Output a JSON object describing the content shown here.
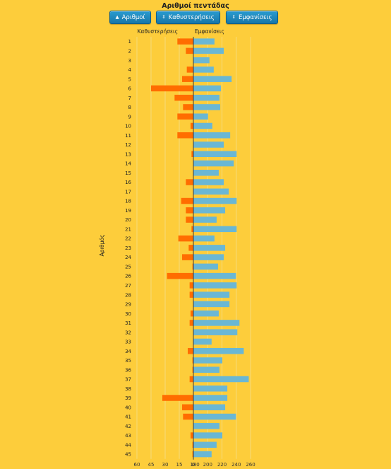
{
  "chart_title": "Αριθμοί πεντάδας",
  "sort_buttons": [
    {
      "label": "Αριθμοί",
      "icon": "sort-ascending-icon",
      "glyph": "▲",
      "active": true
    },
    {
      "label": "Καθυστερήσεις",
      "icon": "sort-icon",
      "glyph": "⇕",
      "active": false
    },
    {
      "label": "Εμφανίσεις",
      "icon": "sort-icon",
      "glyph": "⇕",
      "active": false
    }
  ],
  "colors": {
    "delay": "#ff6d00",
    "appearance": "#6ab7d4",
    "grid": "#f5dc7e",
    "axis": "#3a3a3a"
  },
  "chart_data": {
    "type": "bar",
    "orientation": "horizontal",
    "layout": "diverging",
    "ylabel": "Αριθμός",
    "categories": [
      "1",
      "2",
      "3",
      "4",
      "5",
      "6",
      "7",
      "8",
      "9",
      "10",
      "11",
      "12",
      "13",
      "14",
      "15",
      "16",
      "17",
      "18",
      "19",
      "20",
      "21",
      "22",
      "23",
      "24",
      "25",
      "26",
      "27",
      "28",
      "29",
      "30",
      "31",
      "32",
      "33",
      "34",
      "35",
      "36",
      "37",
      "38",
      "39",
      "40",
      "41",
      "42",
      "43",
      "44",
      "45"
    ],
    "series": [
      {
        "name": "Καθυστερήσεις",
        "side": "left",
        "xlim": [
          0,
          60
        ],
        "ticks": [
          "60",
          "45",
          "30",
          "15",
          "0"
        ],
        "values": [
          17,
          8,
          0,
          7,
          12,
          45,
          20,
          11,
          17,
          3,
          17,
          0,
          2,
          0,
          0,
          8,
          0,
          13,
          8,
          8,
          2,
          16,
          5,
          12,
          1,
          28,
          4,
          4,
          0,
          3,
          4,
          0,
          0,
          6,
          1,
          1,
          4,
          0,
          33,
          12,
          11,
          0,
          3,
          1,
          1
        ]
      },
      {
        "name": "Εμφανίσεις",
        "side": "right",
        "xlim": [
          180,
          260
        ],
        "ticks": [
          "180",
          "200",
          "220",
          "240",
          "260"
        ],
        "values": [
          209,
          222,
          202,
          208,
          233,
          218,
          216,
          217,
          200,
          206,
          231,
          222,
          240,
          236,
          215,
          222,
          229,
          240,
          224,
          212,
          240,
          209,
          224,
          222,
          214,
          239,
          240,
          230,
          230,
          215,
          244,
          241,
          205,
          250,
          220,
          216,
          257,
          227,
          227,
          224,
          239,
          216,
          220,
          212,
          205
        ]
      }
    ]
  }
}
